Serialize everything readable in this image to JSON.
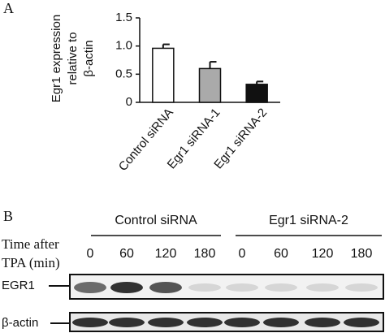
{
  "panel_a_label": "A",
  "chart_data": {
    "type": "bar",
    "y_label": [
      "Egr1 expression",
      "relative to",
      "β-actin"
    ],
    "categories": [
      "Control siRNA",
      "Egr1 siRNA-1",
      "Egr1 siRNA-2"
    ],
    "values": [
      0.96,
      0.6,
      0.32
    ],
    "errors": [
      0.07,
      0.12,
      0.05
    ],
    "colors": [
      "#ffffff",
      "#aaaaaa",
      "#111111"
    ],
    "ylim": [
      0,
      1.5
    ],
    "yticks": [
      0,
      0.5,
      {
        "value": 1,
        "label": "1.0"
      },
      1.5
    ]
  },
  "panel_b_label": "B",
  "blot": {
    "time_label": [
      "Time after",
      "TPA (min)"
    ],
    "groups": [
      {
        "label": "Control siRNA",
        "times": [
          "0",
          "60",
          "120",
          "180"
        ]
      },
      {
        "label": "Egr1 siRNA-2",
        "times": [
          "0",
          "60",
          "120",
          "180"
        ]
      }
    ],
    "rows": [
      "EGR1",
      "β-actin"
    ]
  }
}
